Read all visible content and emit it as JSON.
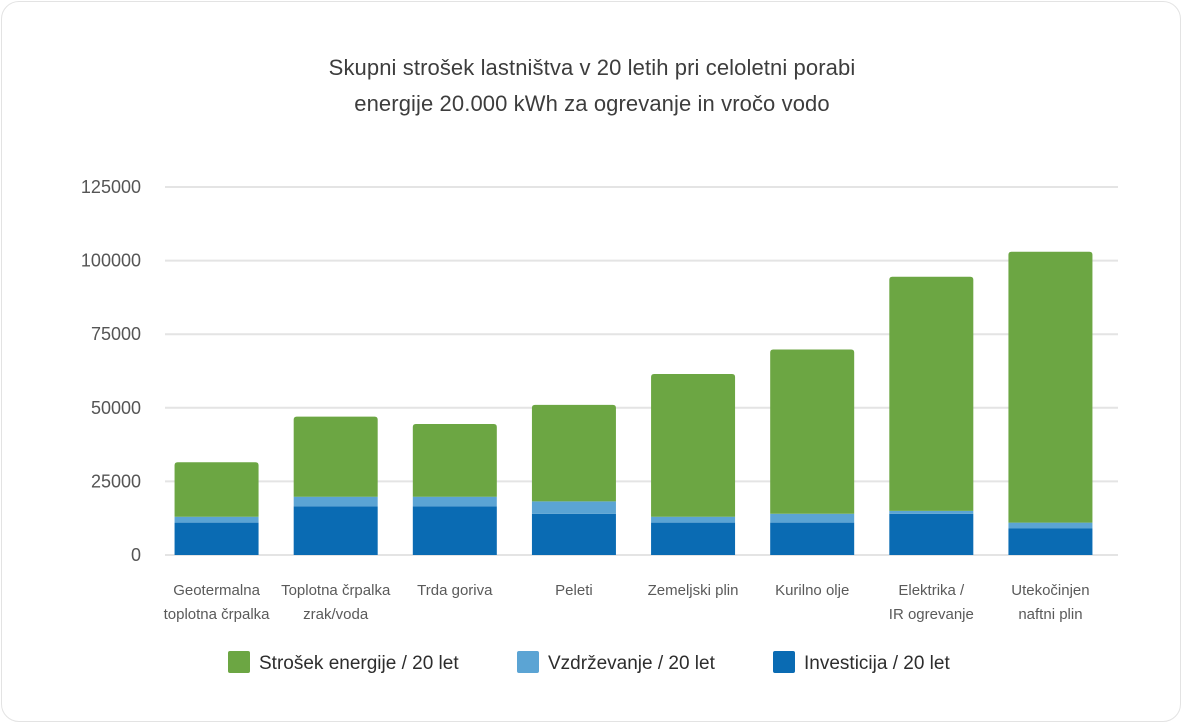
{
  "chart_data": {
    "type": "bar",
    "stacked": true,
    "title": "Skupni strošek lastništva v 20 letih pri celoletni porabi energije 20.000 kWh za ogrevanje in vročo vodo",
    "title_lines": [
      "Skupni strošek lastništva v 20 letih pri celoletni porabi",
      "energije 20.000 kWh za ogrevanje in vročo vodo"
    ],
    "categories": [
      [
        "Geotermalna",
        "toplotna črpalka"
      ],
      [
        "Toplotna črpalka",
        "zrak/voda"
      ],
      [
        "Trda goriva"
      ],
      [
        "Peleti"
      ],
      [
        "Zemeljski plin"
      ],
      [
        "Kurilno olje"
      ],
      [
        "Elektrika /",
        "IR ogrevanje"
      ],
      [
        "Utekočinjen",
        "naftni plin"
      ]
    ],
    "series": [
      {
        "name": "Investicija / 20 let",
        "color": "#0a6bb3",
        "values": [
          11000,
          16500,
          16500,
          14000,
          11000,
          11000,
          14000,
          9000
        ]
      },
      {
        "name": "Vzdrževanje / 20 let",
        "color": "#5ba4d4",
        "values": [
          2000,
          3300,
          3300,
          4200,
          2000,
          3000,
          1000,
          2000
        ]
      },
      {
        "name": "Strošek energije / 20 let",
        "color": "#6ca643",
        "values": [
          18500,
          27200,
          24700,
          32800,
          48500,
          55800,
          79500,
          92000
        ]
      }
    ],
    "legend_order": [
      "Strošek energije / 20 let",
      "Vzdrževanje / 20 let",
      "Investicija / 20 let"
    ],
    "y_ticks": [
      0,
      25000,
      50000,
      75000,
      100000,
      125000
    ],
    "y_tick_labels": [
      "0",
      "25000",
      "50000",
      "75000",
      "100000",
      "125000"
    ],
    "ylim": [
      0,
      125000
    ],
    "grid": true,
    "legend_position": "bottom-center",
    "xlabel": "",
    "ylabel": ""
  }
}
